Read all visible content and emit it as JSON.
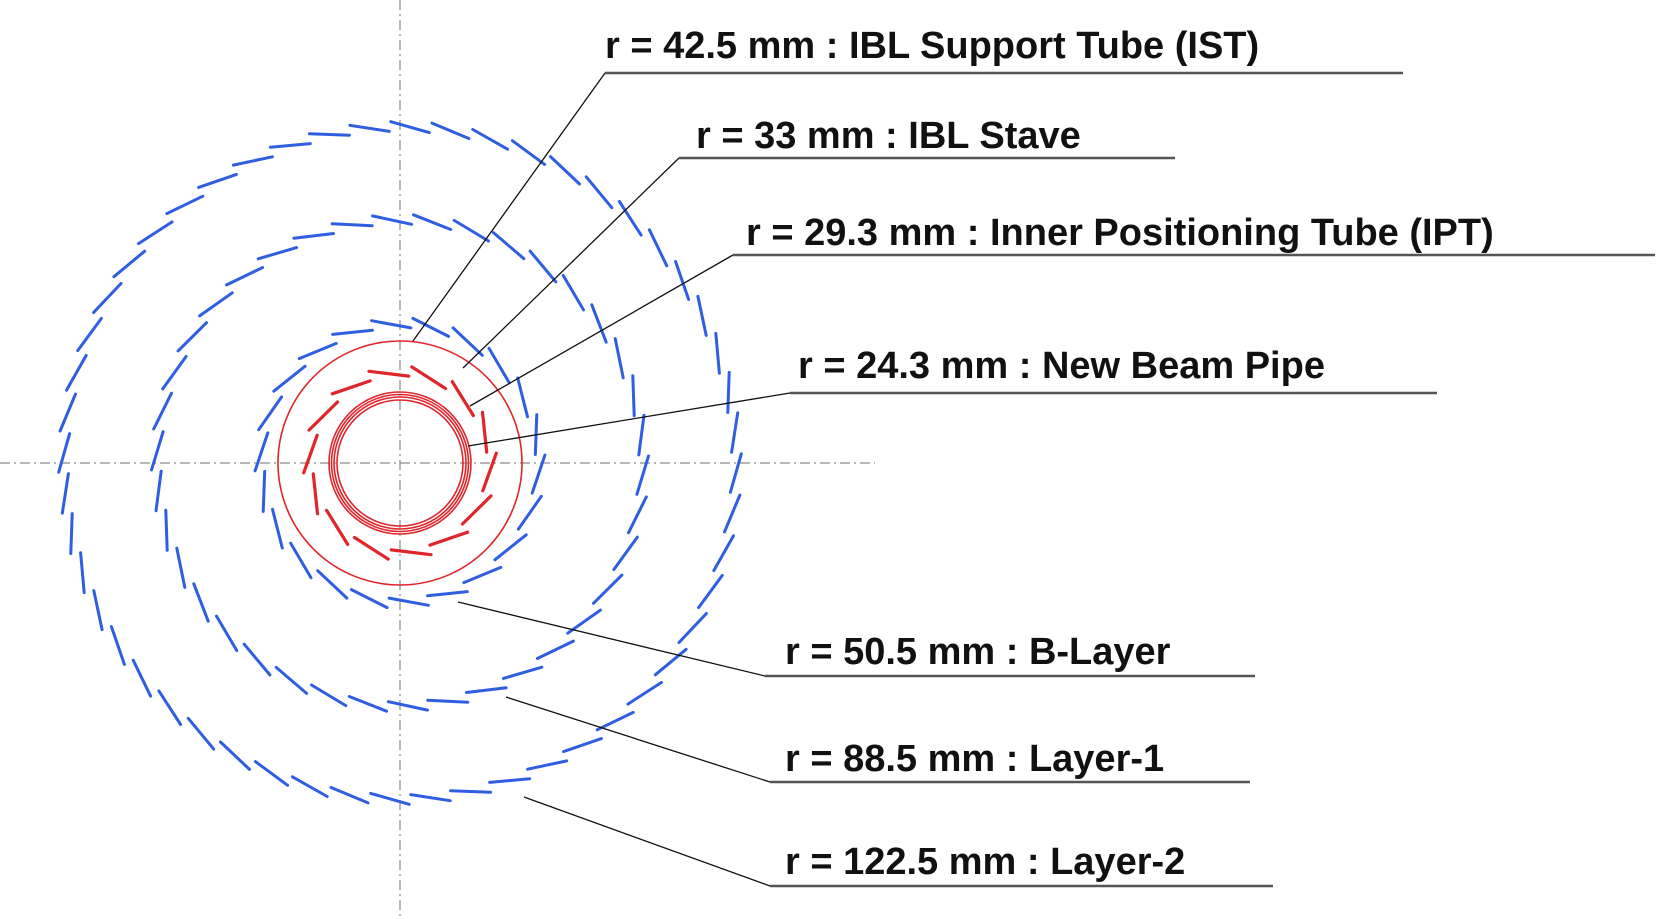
{
  "colors": {
    "pixel_layer_staves": "#2f5fe0",
    "ibl_staves": "#e0262b",
    "ibl_rings": "#e0262b",
    "axes": "#8a8a8a",
    "label_text": "#111111"
  },
  "labels": {
    "ist": "r = 42.5 mm : IBL Support Tube (IST)",
    "ibl_stave": "r = 33 mm : IBL Stave",
    "ipt": "r = 29.3 mm : Inner Positioning Tube (IPT)",
    "beam_pipe": "r = 24.3 mm : New Beam Pipe",
    "b_layer": "r = 50.5 mm : B-Layer",
    "layer_1": "r = 88.5 mm : Layer-1",
    "layer_2": "r = 122.5 mm : Layer-2"
  }
}
